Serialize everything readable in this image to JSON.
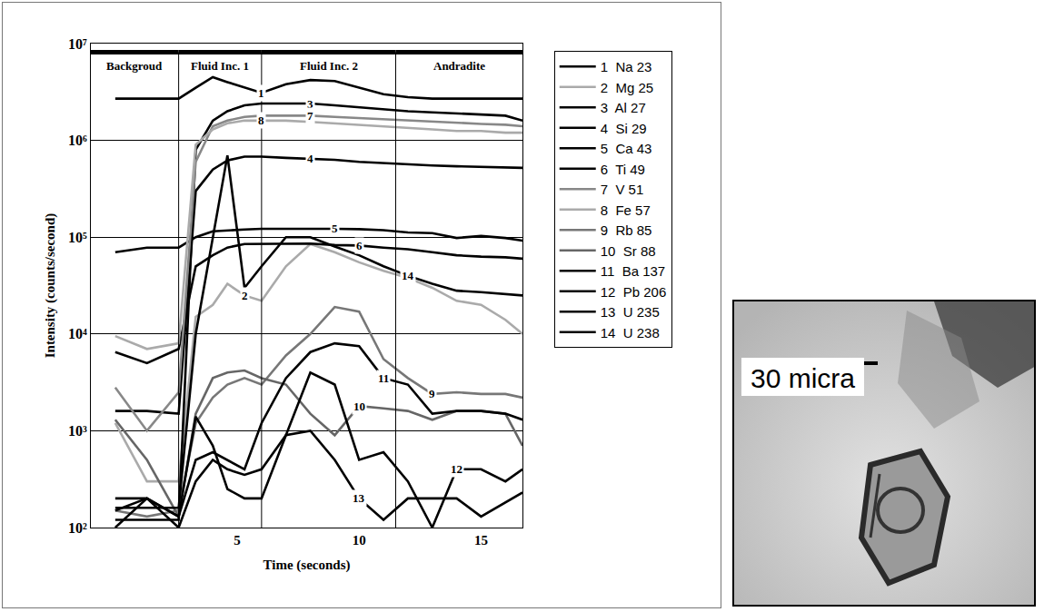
{
  "chart_data": {
    "type": "line",
    "xlabel": "Time (seconds)",
    "ylabel": "Intensity (counts/second)",
    "log": "y",
    "grid": true,
    "legend": "right",
    "xlim": [
      -1,
      16.7
    ],
    "xticks": [
      5,
      10,
      15
    ],
    "ylim": [
      100,
      10000000
    ],
    "yticks": [
      {
        "value": 100,
        "label": "10²"
      },
      {
        "value": 1000,
        "label": "10³"
      },
      {
        "value": 10000,
        "label": "10⁴"
      },
      {
        "value": 100000,
        "label": "10⁵"
      },
      {
        "value": 1000000,
        "label": "10⁶"
      },
      {
        "value": 10000000,
        "label": "10⁷"
      }
    ],
    "regions": [
      {
        "label": "Backgroud",
        "x0": -1,
        "x1": 2.6
      },
      {
        "label": "Fluid Inc. 1",
        "x0": 2.6,
        "x1": 6
      },
      {
        "label": "Fluid Inc. 2",
        "x0": 6,
        "x1": 11.5
      },
      {
        "label": "Andradite",
        "x0": 11.5,
        "x1": 16.7
      }
    ],
    "x": [
      0,
      1.3,
      2.6,
      3.3,
      4,
      4.6,
      5.3,
      6,
      7,
      8,
      9,
      10,
      11,
      12,
      13,
      14,
      15,
      16,
      16.7
    ],
    "series": [
      {
        "label": "1",
        "name": "Na 23",
        "color": "#000000",
        "label_x": 6,
        "values": [
          2700000,
          2700000,
          2700000,
          3500000,
          4500000,
          4000000,
          3500000,
          3100000,
          3800000,
          4200000,
          4100000,
          3500000,
          3000000,
          2800000,
          2700000,
          2700000,
          2700000,
          2700000,
          2700000
        ]
      },
      {
        "label": "2",
        "name": "Mg 25",
        "color": "#aaaaaa",
        "label_x": 5.3,
        "values": [
          1200,
          300,
          300,
          15000,
          20000,
          33000,
          25000,
          22000,
          50000,
          85000,
          70000,
          55000,
          45000,
          38000,
          30000,
          22000,
          20000,
          14000,
          10000
        ]
      },
      {
        "label": "3",
        "name": "Al 27",
        "color": "#000000",
        "label_x": 8,
        "values": [
          120,
          120,
          120,
          800000,
          1600000,
          2000000,
          2300000,
          2400000,
          2400000,
          2400000,
          2300000,
          2200000,
          2100000,
          2000000,
          1950000,
          1900000,
          1850000,
          1800000,
          1600000
        ]
      },
      {
        "label": "4",
        "name": "Si 29",
        "color": "#000000",
        "label_x": 8,
        "values": [
          1600,
          1600,
          1500,
          300000,
          500000,
          620000,
          680000,
          680000,
          660000,
          650000,
          630000,
          600000,
          580000,
          560000,
          550000,
          540000,
          530000,
          520000,
          520000
        ]
      },
      {
        "label": "5",
        "name": "Ca 43",
        "color": "#000000",
        "label_x": 9,
        "values": [
          70000,
          78000,
          78000,
          100000,
          115000,
          118000,
          120000,
          122000,
          122000,
          123000,
          122000,
          121000,
          118000,
          112000,
          110000,
          98000,
          103000,
          98000,
          92000
        ]
      },
      {
        "label": "6",
        "name": "Ti 49",
        "color": "#000000",
        "label_x": 10,
        "values": [
          6500,
          5000,
          7000,
          50000,
          65000,
          78000,
          85000,
          85000,
          85000,
          86000,
          83000,
          82000,
          78000,
          75000,
          70000,
          65000,
          63000,
          62000,
          60000
        ]
      },
      {
        "label": "7",
        "name": "V 51",
        "color": "#888888",
        "label_x": 8,
        "values": [
          2800,
          1000,
          2500,
          600000,
          1400000,
          1600000,
          1750000,
          1800000,
          1800000,
          1800000,
          1750000,
          1700000,
          1650000,
          1600000,
          1550000,
          1500000,
          1480000,
          1450000,
          1400000
        ]
      },
      {
        "label": "8",
        "name": "Fe 57",
        "color": "#aaaaaa",
        "label_x": 6,
        "values": [
          9500,
          7000,
          8000,
          900000,
          1300000,
          1500000,
          1600000,
          1600000,
          1600000,
          1550000,
          1500000,
          1450000,
          1400000,
          1350000,
          1300000,
          1250000,
          1250000,
          1200000,
          1200000
        ]
      },
      {
        "label": "9",
        "name": "Rb 85",
        "color": "#777777",
        "label_x": 13,
        "values": [
          150,
          130,
          150,
          1200,
          2200,
          3000,
          3500,
          3000,
          6000,
          10000,
          19000,
          17000,
          5500,
          3500,
          2400,
          2500,
          2400,
          2400,
          2200
        ]
      },
      {
        "label": "10",
        "name": "Sr 88",
        "color": "#666666",
        "label_x": 10,
        "values": [
          1300,
          500,
          130,
          1500,
          3500,
          4000,
          4200,
          3500,
          3000,
          1500,
          900,
          1800,
          1700,
          1600,
          1300,
          1600,
          1600,
          1500,
          700
        ]
      },
      {
        "label": "11",
        "name": "Ba 137",
        "color": "#000000",
        "label_x": 11,
        "values": [
          200,
          200,
          130,
          500,
          600,
          500,
          400,
          1200,
          3500,
          6500,
          8000,
          7500,
          3500,
          3000,
          1500,
          1600,
          1600,
          1500,
          1300
        ]
      },
      {
        "label": "12",
        "name": "Pb 206",
        "color": "#000000",
        "label_x": 14,
        "values": [
          150,
          200,
          130,
          1400,
          700,
          250,
          200,
          200,
          900,
          4000,
          3000,
          500,
          600,
          300,
          100,
          400,
          400,
          300,
          400
        ]
      },
      {
        "label": "13",
        "name": "U 235",
        "color": "#000000",
        "label_x": 10,
        "values": [
          100,
          200,
          100,
          300,
          500,
          400,
          350,
          400,
          900,
          1000,
          500,
          200,
          120,
          200,
          200,
          200,
          130,
          180,
          230
        ]
      },
      {
        "label": "14",
        "name": "U 238",
        "color": "#000000",
        "label_x": 12,
        "values": [
          160,
          160,
          160,
          10000,
          100000,
          700000,
          30000,
          50000,
          100000,
          100000,
          80000,
          65000,
          50000,
          40000,
          33000,
          28000,
          27000,
          26000,
          25000
        ]
      }
    ]
  },
  "photo": {
    "scale_bar": "30 micra"
  }
}
